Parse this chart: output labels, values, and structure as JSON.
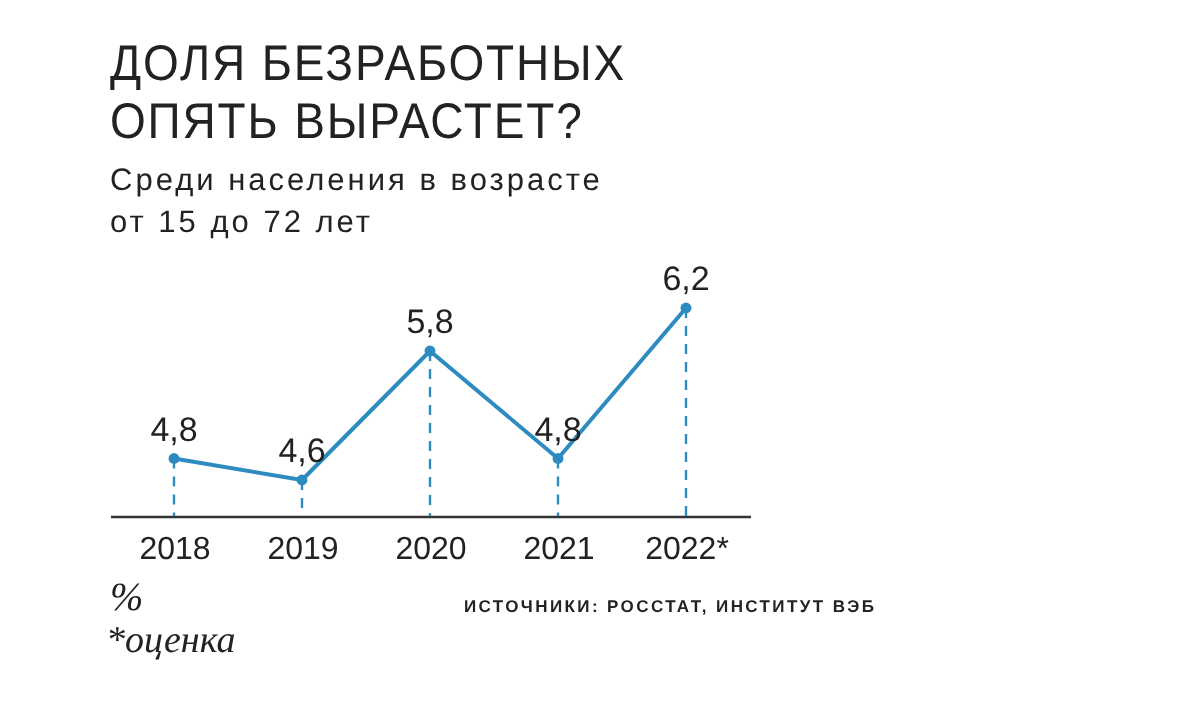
{
  "chart_data": {
    "type": "line",
    "title": "ДОЛЯ БЕЗРАБОТНЫХ ОПЯТЬ ВЫРАСТЕТ?",
    "subtitle": "Среди населения в возрасте от 15 до 72 лет",
    "categories": [
      "2018",
      "2019",
      "2020",
      "2021",
      "2022*"
    ],
    "series": [
      {
        "color": "#2e8bc0",
        "values": [
          4.8,
          4.6,
          5.8,
          4.8,
          6.2
        ],
        "value_labels": [
          "4,8",
          "4,6",
          "5,8",
          "4,8",
          "6,2"
        ]
      }
    ],
    "marker": "circle",
    "line_style": "solid",
    "annotations": [
      "%",
      "*оценка",
      "ИСТОЧНИКИ: РОССТАТ, ИНСТИТУТ ВЭБ"
    ]
  }
}
